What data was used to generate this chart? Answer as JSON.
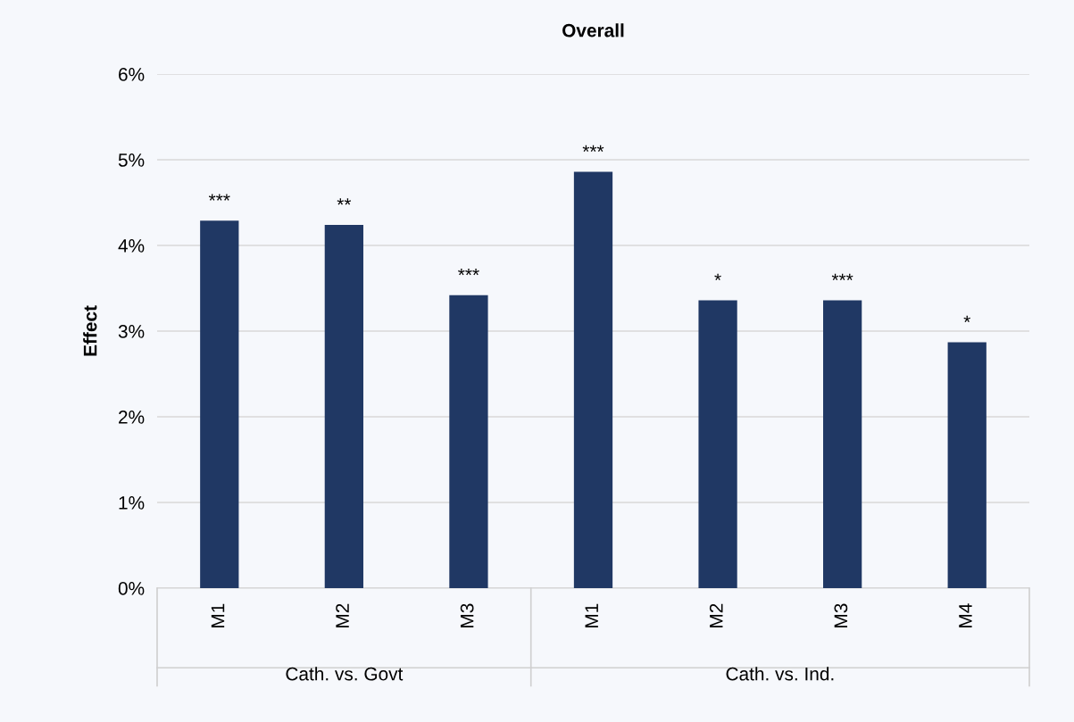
{
  "chart_data": {
    "type": "bar",
    "title": "Overall",
    "ylabel": "Effect",
    "categories": [
      "M1",
      "M2",
      "M3",
      "M1",
      "M2",
      "M3",
      "M4"
    ],
    "values": [
      4.29,
      4.24,
      3.42,
      4.86,
      3.36,
      3.36,
      2.87
    ],
    "value_labels": [
      "***",
      "**",
      "***",
      "***",
      "*",
      "***",
      "*"
    ],
    "color": "#203864",
    "annotations": [
      "Cath. vs. Govt",
      "Cath. vs. Ind."
    ],
    "ylim": [
      0,
      6
    ],
    "yticks": [
      {
        "value": 0,
        "label": "0%"
      },
      {
        "value": 1,
        "label": "1%"
      },
      {
        "value": 2,
        "label": "2%"
      },
      {
        "value": 3,
        "label": "3%"
      },
      {
        "value": 4,
        "label": "4%"
      },
      {
        "value": 5,
        "label": "5%"
      },
      {
        "value": 6,
        "label": "6%"
      }
    ],
    "grid": "y",
    "legend": false
  }
}
